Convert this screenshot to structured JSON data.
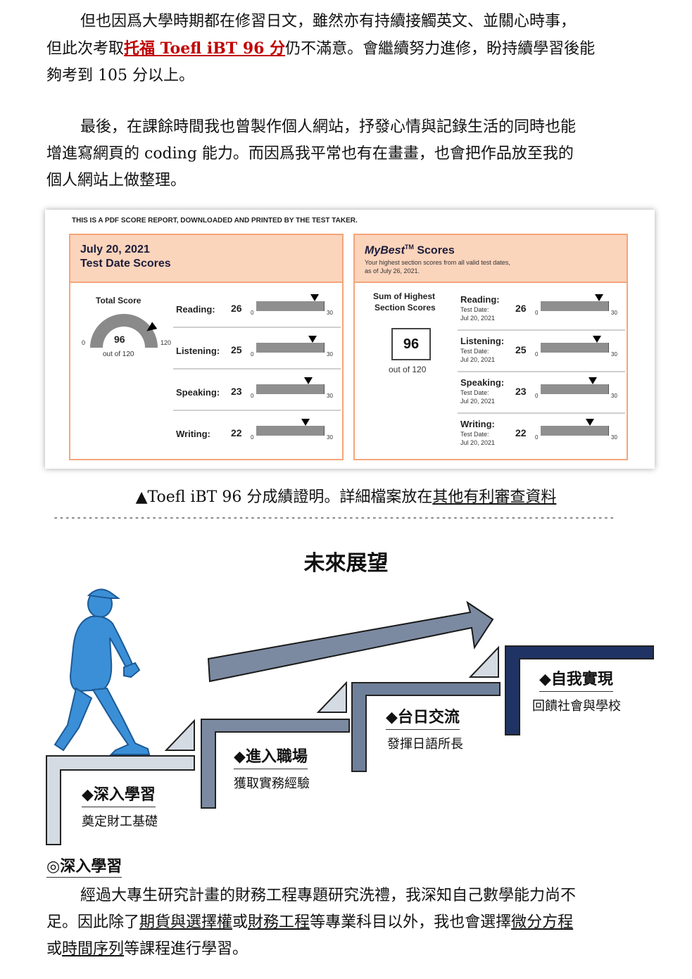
{
  "para1": {
    "line1": "但也因爲大學時期都在修習日文，雖然亦有持續接觸英文、並關心時事，",
    "line2_pre": "但此次考取",
    "line2_highlight": "托福 Toefl iBT 96 分",
    "line2_post": "仍不滿意。會繼續努力進修，盼持續學習後能",
    "line3": "夠考到 105 分以上。"
  },
  "para2": {
    "line1": "最後，在課餘時間我也曾製作個人網站，抒發心情與記錄生活的同時也能",
    "line2": "增進寫網頁的 coding 能力。而因爲我平常也有在畫畫，也會把作品放至我的",
    "line3": "個人網站上做整理。"
  },
  "report": {
    "note": "THIS IS A PDF SCORE REPORT, DOWNLOADED AND PRINTED BY THE TEST TAKER.",
    "left": {
      "date": "July 20, 2021",
      "title": "Test Date Scores",
      "total_label": "Total Score",
      "total": "96",
      "out_of": "out of 120",
      "gauge_min": "0",
      "gauge_max": "120",
      "total_fraction": 0.8
    },
    "right": {
      "title_em": "MyBest",
      "title_tm": "TM",
      "title_rest": " Scores",
      "sub1": "Your highest section scores from all valid test dates,",
      "sub2": "as of July 26, 2021.",
      "sum_label1": "Sum of Highest",
      "sum_label2": "Section Scores",
      "total": "96",
      "out_of": "out of 120",
      "test_date_label": "Test Date:",
      "test_date": "Jul 20, 2021"
    },
    "scale_min": "0",
    "scale_max": "30",
    "sections": [
      {
        "name": "Reading:",
        "score": "26",
        "value": 26
      },
      {
        "name": "Listening:",
        "score": "25",
        "value": 25
      },
      {
        "name": "Speaking:",
        "score": "23",
        "value": 23
      },
      {
        "name": "Writing:",
        "score": "22",
        "value": 22
      }
    ]
  },
  "caption": {
    "pre": "▲Toefl iBT 96 分成績證明。詳細檔案放在",
    "link": "其他有利審查資料"
  },
  "divider": "-------------------------------------------------------------------------------------------------",
  "future": {
    "title": "未來展望",
    "steps": [
      {
        "title": "◆深入學習",
        "desc": "奠定財工基礎"
      },
      {
        "title": "◆進入職場",
        "desc": "獲取實務經驗"
      },
      {
        "title": "◆台日交流",
        "desc": "發揮日語所長"
      },
      {
        "title": "◆自我實現",
        "desc": "回饋社會與學校"
      }
    ]
  },
  "section": {
    "heading": "◎深入學習",
    "line1": "經過大專生研究計畫的財務工程專題研究洗禮，我深知自己數學能力尚不",
    "l2_a": "足。因此除了",
    "l2_u1": "期貨與選擇權",
    "l2_b": "或",
    "l2_u2": "財務工程",
    "l2_c": "等專業科目以外，我也會選擇",
    "l2_u3": "微分方程",
    "l3_a": "或",
    "l3_u1": "時間序列",
    "l3_b": "等課程進行學習。"
  },
  "colors": {
    "report_border": "#f4a57b",
    "report_header": "#fbd4bc",
    "walker": "#3b8fd6",
    "step1": "#d5dbe3",
    "step2": "#7b8aa1",
    "step3": "#6f809a",
    "step4": "#1f3464",
    "highlight": "#c00000"
  }
}
